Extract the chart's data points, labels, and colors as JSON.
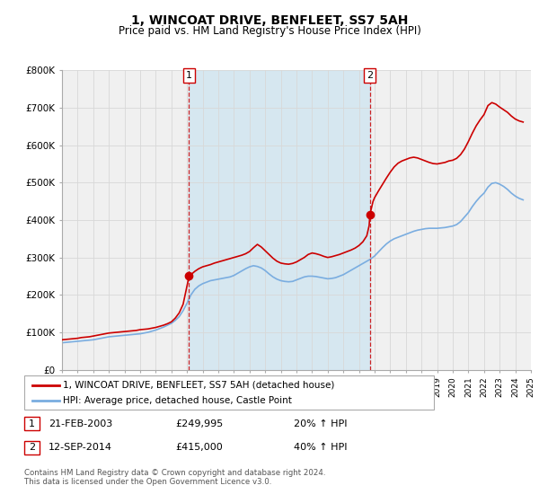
{
  "title": "1, WINCOAT DRIVE, BENFLEET, SS7 5AH",
  "subtitle": "Price paid vs. HM Land Registry's House Price Index (HPI)",
  "red_label": "1, WINCOAT DRIVE, BENFLEET, SS7 5AH (detached house)",
  "blue_label": "HPI: Average price, detached house, Castle Point",
  "marker1_date": 2003.13,
  "marker1_value": 249995,
  "marker1_label": "1",
  "marker1_text": "21-FEB-2003",
  "marker1_price": "£249,995",
  "marker1_hpi": "20% ↑ HPI",
  "marker2_date": 2014.7,
  "marker2_value": 415000,
  "marker2_label": "2",
  "marker2_text": "12-SEP-2014",
  "marker2_price": "£415,000",
  "marker2_hpi": "40% ↑ HPI",
  "xlim": [
    1995,
    2025
  ],
  "ylim": [
    0,
    800000
  ],
  "yticks": [
    0,
    100000,
    200000,
    300000,
    400000,
    500000,
    600000,
    700000,
    800000
  ],
  "ytick_labels": [
    "£0",
    "£100K",
    "£200K",
    "£300K",
    "£400K",
    "£500K",
    "£600K",
    "£700K",
    "£800K"
  ],
  "xticks": [
    1995,
    1996,
    1997,
    1998,
    1999,
    2000,
    2001,
    2002,
    2003,
    2004,
    2005,
    2006,
    2007,
    2008,
    2009,
    2010,
    2011,
    2012,
    2013,
    2014,
    2015,
    2016,
    2017,
    2018,
    2019,
    2020,
    2021,
    2022,
    2023,
    2024,
    2025
  ],
  "bg_color": "#f0f0f0",
  "red_color": "#cc0000",
  "blue_color": "#7aade0",
  "grid_color": "#d8d8d8",
  "shade_color": "#cce4f0",
  "marker_box_color": "#cc0000",
  "footer": "Contains HM Land Registry data © Crown copyright and database right 2024.\nThis data is licensed under the Open Government Licence v3.0.",
  "red_data": [
    [
      1995.0,
      80000
    ],
    [
      1995.25,
      81000
    ],
    [
      1995.5,
      82000
    ],
    [
      1995.75,
      83000
    ],
    [
      1996.0,
      84000
    ],
    [
      1996.25,
      86000
    ],
    [
      1996.5,
      87000
    ],
    [
      1996.75,
      88000
    ],
    [
      1997.0,
      90000
    ],
    [
      1997.25,
      92000
    ],
    [
      1997.5,
      94000
    ],
    [
      1997.75,
      96000
    ],
    [
      1998.0,
      98000
    ],
    [
      1998.25,
      99000
    ],
    [
      1998.5,
      100000
    ],
    [
      1998.75,
      101000
    ],
    [
      1999.0,
      102000
    ],
    [
      1999.25,
      103000
    ],
    [
      1999.5,
      104000
    ],
    [
      1999.75,
      105000
    ],
    [
      2000.0,
      107000
    ],
    [
      2000.25,
      108000
    ],
    [
      2000.5,
      109000
    ],
    [
      2000.75,
      111000
    ],
    [
      2001.0,
      113000
    ],
    [
      2001.25,
      116000
    ],
    [
      2001.5,
      119000
    ],
    [
      2001.75,
      123000
    ],
    [
      2002.0,
      128000
    ],
    [
      2002.25,
      138000
    ],
    [
      2002.5,
      152000
    ],
    [
      2002.75,
      175000
    ],
    [
      2003.13,
      249995
    ],
    [
      2003.5,
      263000
    ],
    [
      2003.75,
      270000
    ],
    [
      2004.0,
      275000
    ],
    [
      2004.25,
      278000
    ],
    [
      2004.5,
      281000
    ],
    [
      2004.75,
      285000
    ],
    [
      2005.0,
      288000
    ],
    [
      2005.25,
      291000
    ],
    [
      2005.5,
      294000
    ],
    [
      2005.75,
      297000
    ],
    [
      2006.0,
      300000
    ],
    [
      2006.25,
      303000
    ],
    [
      2006.5,
      306000
    ],
    [
      2006.75,
      310000
    ],
    [
      2007.0,
      316000
    ],
    [
      2007.25,
      326000
    ],
    [
      2007.5,
      335000
    ],
    [
      2007.75,
      328000
    ],
    [
      2008.0,
      318000
    ],
    [
      2008.25,
      308000
    ],
    [
      2008.5,
      298000
    ],
    [
      2008.75,
      290000
    ],
    [
      2009.0,
      285000
    ],
    [
      2009.25,
      283000
    ],
    [
      2009.5,
      282000
    ],
    [
      2009.75,
      284000
    ],
    [
      2010.0,
      288000
    ],
    [
      2010.25,
      294000
    ],
    [
      2010.5,
      300000
    ],
    [
      2010.75,
      308000
    ],
    [
      2011.0,
      312000
    ],
    [
      2011.25,
      310000
    ],
    [
      2011.5,
      307000
    ],
    [
      2011.75,
      303000
    ],
    [
      2012.0,
      300000
    ],
    [
      2012.25,
      302000
    ],
    [
      2012.5,
      305000
    ],
    [
      2012.75,
      308000
    ],
    [
      2013.0,
      312000
    ],
    [
      2013.25,
      316000
    ],
    [
      2013.5,
      320000
    ],
    [
      2013.75,
      325000
    ],
    [
      2014.0,
      332000
    ],
    [
      2014.25,
      342000
    ],
    [
      2014.5,
      358000
    ],
    [
      2014.65,
      385000
    ],
    [
      2014.7,
      415000
    ],
    [
      2014.9,
      450000
    ],
    [
      2015.0,
      460000
    ],
    [
      2015.25,
      478000
    ],
    [
      2015.5,
      495000
    ],
    [
      2015.75,
      512000
    ],
    [
      2016.0,
      528000
    ],
    [
      2016.25,
      542000
    ],
    [
      2016.5,
      552000
    ],
    [
      2016.75,
      558000
    ],
    [
      2017.0,
      562000
    ],
    [
      2017.25,
      566000
    ],
    [
      2017.5,
      568000
    ],
    [
      2017.75,
      566000
    ],
    [
      2018.0,
      562000
    ],
    [
      2018.25,
      558000
    ],
    [
      2018.5,
      554000
    ],
    [
      2018.75,
      551000
    ],
    [
      2019.0,
      550000
    ],
    [
      2019.25,
      552000
    ],
    [
      2019.5,
      554000
    ],
    [
      2019.75,
      558000
    ],
    [
      2020.0,
      560000
    ],
    [
      2020.25,
      565000
    ],
    [
      2020.5,
      575000
    ],
    [
      2020.75,
      590000
    ],
    [
      2021.0,
      610000
    ],
    [
      2021.25,
      632000
    ],
    [
      2021.5,
      652000
    ],
    [
      2021.75,
      668000
    ],
    [
      2022.0,
      682000
    ],
    [
      2022.25,
      706000
    ],
    [
      2022.5,
      714000
    ],
    [
      2022.75,
      710000
    ],
    [
      2023.0,
      702000
    ],
    [
      2023.25,
      695000
    ],
    [
      2023.5,
      688000
    ],
    [
      2023.75,
      678000
    ],
    [
      2024.0,
      670000
    ],
    [
      2024.25,
      665000
    ],
    [
      2024.5,
      662000
    ]
  ],
  "blue_data": [
    [
      1995.0,
      72000
    ],
    [
      1995.25,
      73000
    ],
    [
      1995.5,
      74000
    ],
    [
      1995.75,
      75000
    ],
    [
      1996.0,
      76000
    ],
    [
      1996.25,
      77000
    ],
    [
      1996.5,
      78000
    ],
    [
      1996.75,
      79000
    ],
    [
      1997.0,
      80000
    ],
    [
      1997.25,
      82000
    ],
    [
      1997.5,
      84000
    ],
    [
      1997.75,
      86000
    ],
    [
      1998.0,
      88000
    ],
    [
      1998.25,
      89000
    ],
    [
      1998.5,
      90000
    ],
    [
      1998.75,
      91000
    ],
    [
      1999.0,
      92000
    ],
    [
      1999.25,
      93000
    ],
    [
      1999.5,
      94000
    ],
    [
      1999.75,
      95000
    ],
    [
      2000.0,
      96000
    ],
    [
      2000.25,
      98000
    ],
    [
      2000.5,
      100000
    ],
    [
      2000.75,
      103000
    ],
    [
      2001.0,
      106000
    ],
    [
      2001.25,
      110000
    ],
    [
      2001.5,
      114000
    ],
    [
      2001.75,
      119000
    ],
    [
      2002.0,
      124000
    ],
    [
      2002.25,
      132000
    ],
    [
      2002.5,
      142000
    ],
    [
      2002.75,
      158000
    ],
    [
      2003.0,
      178000
    ],
    [
      2003.25,
      200000
    ],
    [
      2003.5,
      215000
    ],
    [
      2003.75,
      224000
    ],
    [
      2004.0,
      230000
    ],
    [
      2004.25,
      234000
    ],
    [
      2004.5,
      238000
    ],
    [
      2004.75,
      240000
    ],
    [
      2005.0,
      242000
    ],
    [
      2005.25,
      244000
    ],
    [
      2005.5,
      246000
    ],
    [
      2005.75,
      248000
    ],
    [
      2006.0,
      252000
    ],
    [
      2006.25,
      258000
    ],
    [
      2006.5,
      264000
    ],
    [
      2006.75,
      270000
    ],
    [
      2007.0,
      275000
    ],
    [
      2007.25,
      278000
    ],
    [
      2007.5,
      276000
    ],
    [
      2007.75,
      272000
    ],
    [
      2008.0,
      265000
    ],
    [
      2008.25,
      256000
    ],
    [
      2008.5,
      248000
    ],
    [
      2008.75,
      242000
    ],
    [
      2009.0,
      238000
    ],
    [
      2009.25,
      236000
    ],
    [
      2009.5,
      235000
    ],
    [
      2009.75,
      236000
    ],
    [
      2010.0,
      240000
    ],
    [
      2010.25,
      244000
    ],
    [
      2010.5,
      248000
    ],
    [
      2010.75,
      250000
    ],
    [
      2011.0,
      250000
    ],
    [
      2011.25,
      249000
    ],
    [
      2011.5,
      247000
    ],
    [
      2011.75,
      245000
    ],
    [
      2012.0,
      243000
    ],
    [
      2012.25,
      244000
    ],
    [
      2012.5,
      246000
    ],
    [
      2012.75,
      250000
    ],
    [
      2013.0,
      254000
    ],
    [
      2013.25,
      260000
    ],
    [
      2013.5,
      266000
    ],
    [
      2013.75,
      272000
    ],
    [
      2014.0,
      278000
    ],
    [
      2014.25,
      284000
    ],
    [
      2014.5,
      290000
    ],
    [
      2014.75,
      296000
    ],
    [
      2015.0,
      304000
    ],
    [
      2015.25,
      315000
    ],
    [
      2015.5,
      326000
    ],
    [
      2015.75,
      336000
    ],
    [
      2016.0,
      344000
    ],
    [
      2016.25,
      350000
    ],
    [
      2016.5,
      354000
    ],
    [
      2016.75,
      358000
    ],
    [
      2017.0,
      362000
    ],
    [
      2017.25,
      366000
    ],
    [
      2017.5,
      370000
    ],
    [
      2017.75,
      373000
    ],
    [
      2018.0,
      375000
    ],
    [
      2018.25,
      377000
    ],
    [
      2018.5,
      378000
    ],
    [
      2018.75,
      378000
    ],
    [
      2019.0,
      378000
    ],
    [
      2019.25,
      379000
    ],
    [
      2019.5,
      380000
    ],
    [
      2019.75,
      382000
    ],
    [
      2020.0,
      384000
    ],
    [
      2020.25,
      388000
    ],
    [
      2020.5,
      396000
    ],
    [
      2020.75,
      408000
    ],
    [
      2021.0,
      420000
    ],
    [
      2021.25,
      436000
    ],
    [
      2021.5,
      450000
    ],
    [
      2021.75,
      462000
    ],
    [
      2022.0,
      472000
    ],
    [
      2022.25,
      488000
    ],
    [
      2022.5,
      498000
    ],
    [
      2022.75,
      500000
    ],
    [
      2023.0,
      496000
    ],
    [
      2023.25,
      490000
    ],
    [
      2023.5,
      482000
    ],
    [
      2023.75,
      472000
    ],
    [
      2024.0,
      464000
    ],
    [
      2024.25,
      458000
    ],
    [
      2024.5,
      454000
    ]
  ]
}
